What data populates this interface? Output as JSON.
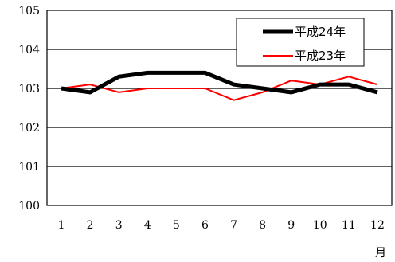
{
  "chart_data": {
    "type": "line",
    "title": "",
    "xlabel": "月",
    "ylabel": "",
    "categories": [
      "1",
      "2",
      "3",
      "4",
      "5",
      "6",
      "7",
      "8",
      "9",
      "10",
      "11",
      "12"
    ],
    "ylim": [
      100,
      105
    ],
    "yticks": [
      "100",
      "101",
      "102",
      "103",
      "104",
      "105"
    ],
    "grid": "horizontal",
    "legend_position": "top-right",
    "series": [
      {
        "name": "平成24年",
        "color": "#000000",
        "style": "thick",
        "values": [
          103.0,
          102.9,
          103.3,
          103.4,
          103.4,
          103.4,
          103.1,
          103.0,
          102.9,
          103.1,
          103.1,
          102.9
        ]
      },
      {
        "name": "平成23年",
        "color": "#ff0000",
        "style": "thin",
        "values": [
          103.0,
          103.1,
          102.9,
          103.0,
          103.0,
          103.0,
          102.7,
          102.9,
          103.2,
          103.1,
          103.3,
          103.1
        ]
      }
    ]
  }
}
